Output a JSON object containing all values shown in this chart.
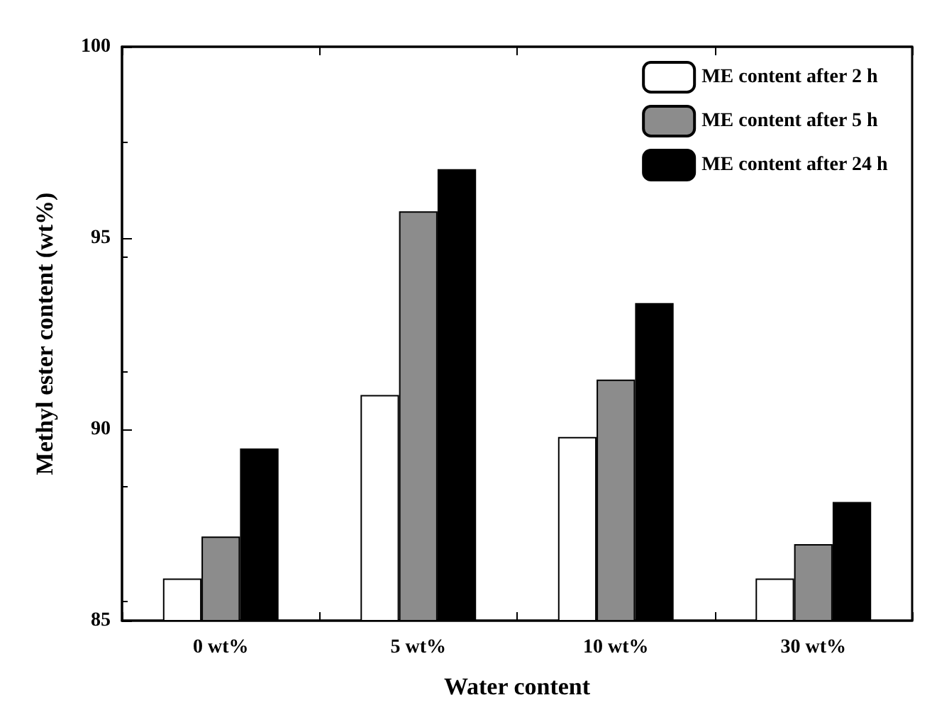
{
  "chart_data": {
    "type": "bar",
    "xlabel": "Water content",
    "ylabel": "Methyl ester content (wt%)",
    "categories": [
      "0 wt%",
      "5 wt%",
      "10 wt%",
      "30 wt%"
    ],
    "series": [
      {
        "name": "ME content after 2 h",
        "color": "#ffffff",
        "values": [
          86.1,
          90.9,
          89.8,
          86.1
        ]
      },
      {
        "name": "ME content after 5 h",
        "color": "#8c8c8c",
        "values": [
          87.2,
          95.7,
          91.3,
          87.0
        ]
      },
      {
        "name": "ME content after 24 h",
        "color": "#000000",
        "values": [
          89.5,
          96.8,
          93.3,
          88.1
        ]
      }
    ],
    "ylim": [
      85,
      100
    ],
    "yticks": [
      85,
      90,
      95,
      100
    ],
    "grid": false,
    "legend": "top right"
  }
}
